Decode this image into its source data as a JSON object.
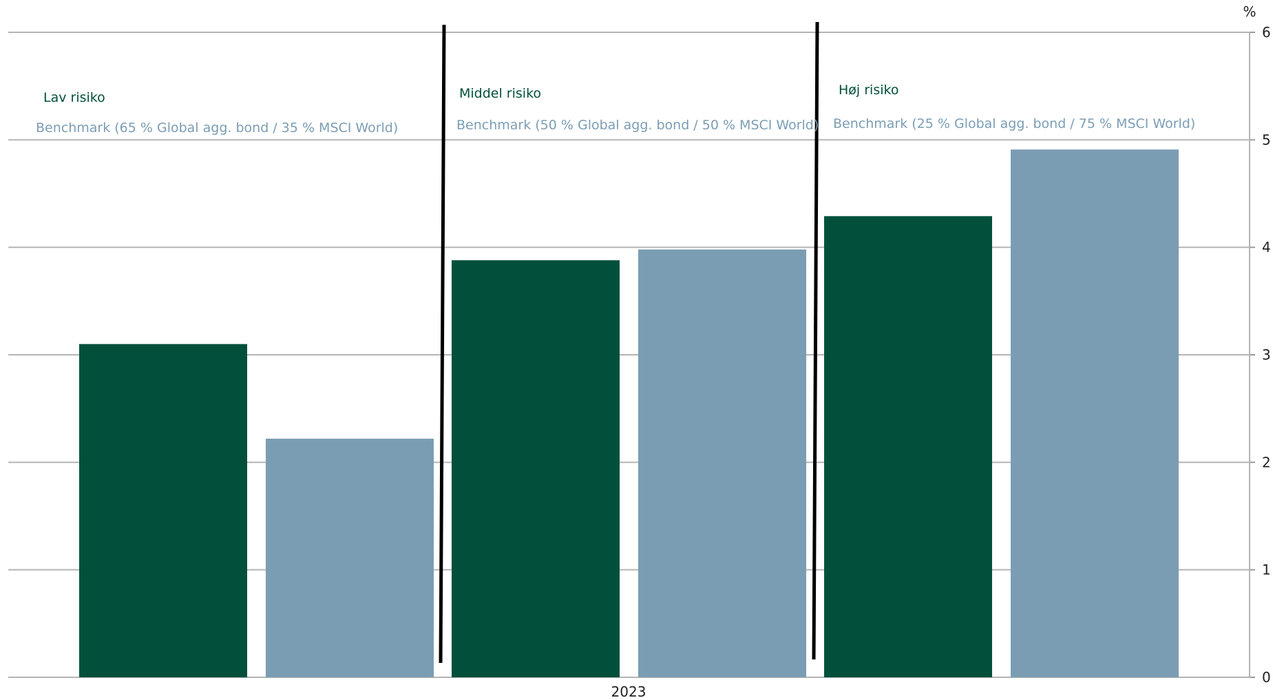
{
  "chart_data": {
    "type": "bar",
    "categories": [
      "2023"
    ],
    "unit": "%",
    "ylim": [
      0,
      6
    ],
    "yticks": [
      0,
      1,
      2,
      3,
      4,
      5,
      6
    ],
    "grid": true,
    "y_axis_side": "right",
    "groups": [
      {
        "title": "Lav risiko",
        "benchmark_label": "Benchmark (65 % Global agg. bond / 35 % MSCI World)",
        "values": [
          3.1,
          2.22
        ]
      },
      {
        "title": "Middel risiko",
        "benchmark_label": "Benchmark (50 % Global agg. bond / 50 % MSCI World)",
        "values": [
          3.88,
          3.98
        ]
      },
      {
        "title": "Høj risiko",
        "benchmark_label": "Benchmark (25 % Global agg. bond / 75 % MSCI World)",
        "values": [
          4.29,
          4.91
        ]
      }
    ],
    "colors": {
      "portfolio": "#02503b",
      "benchmark": "#7b9db4"
    }
  }
}
